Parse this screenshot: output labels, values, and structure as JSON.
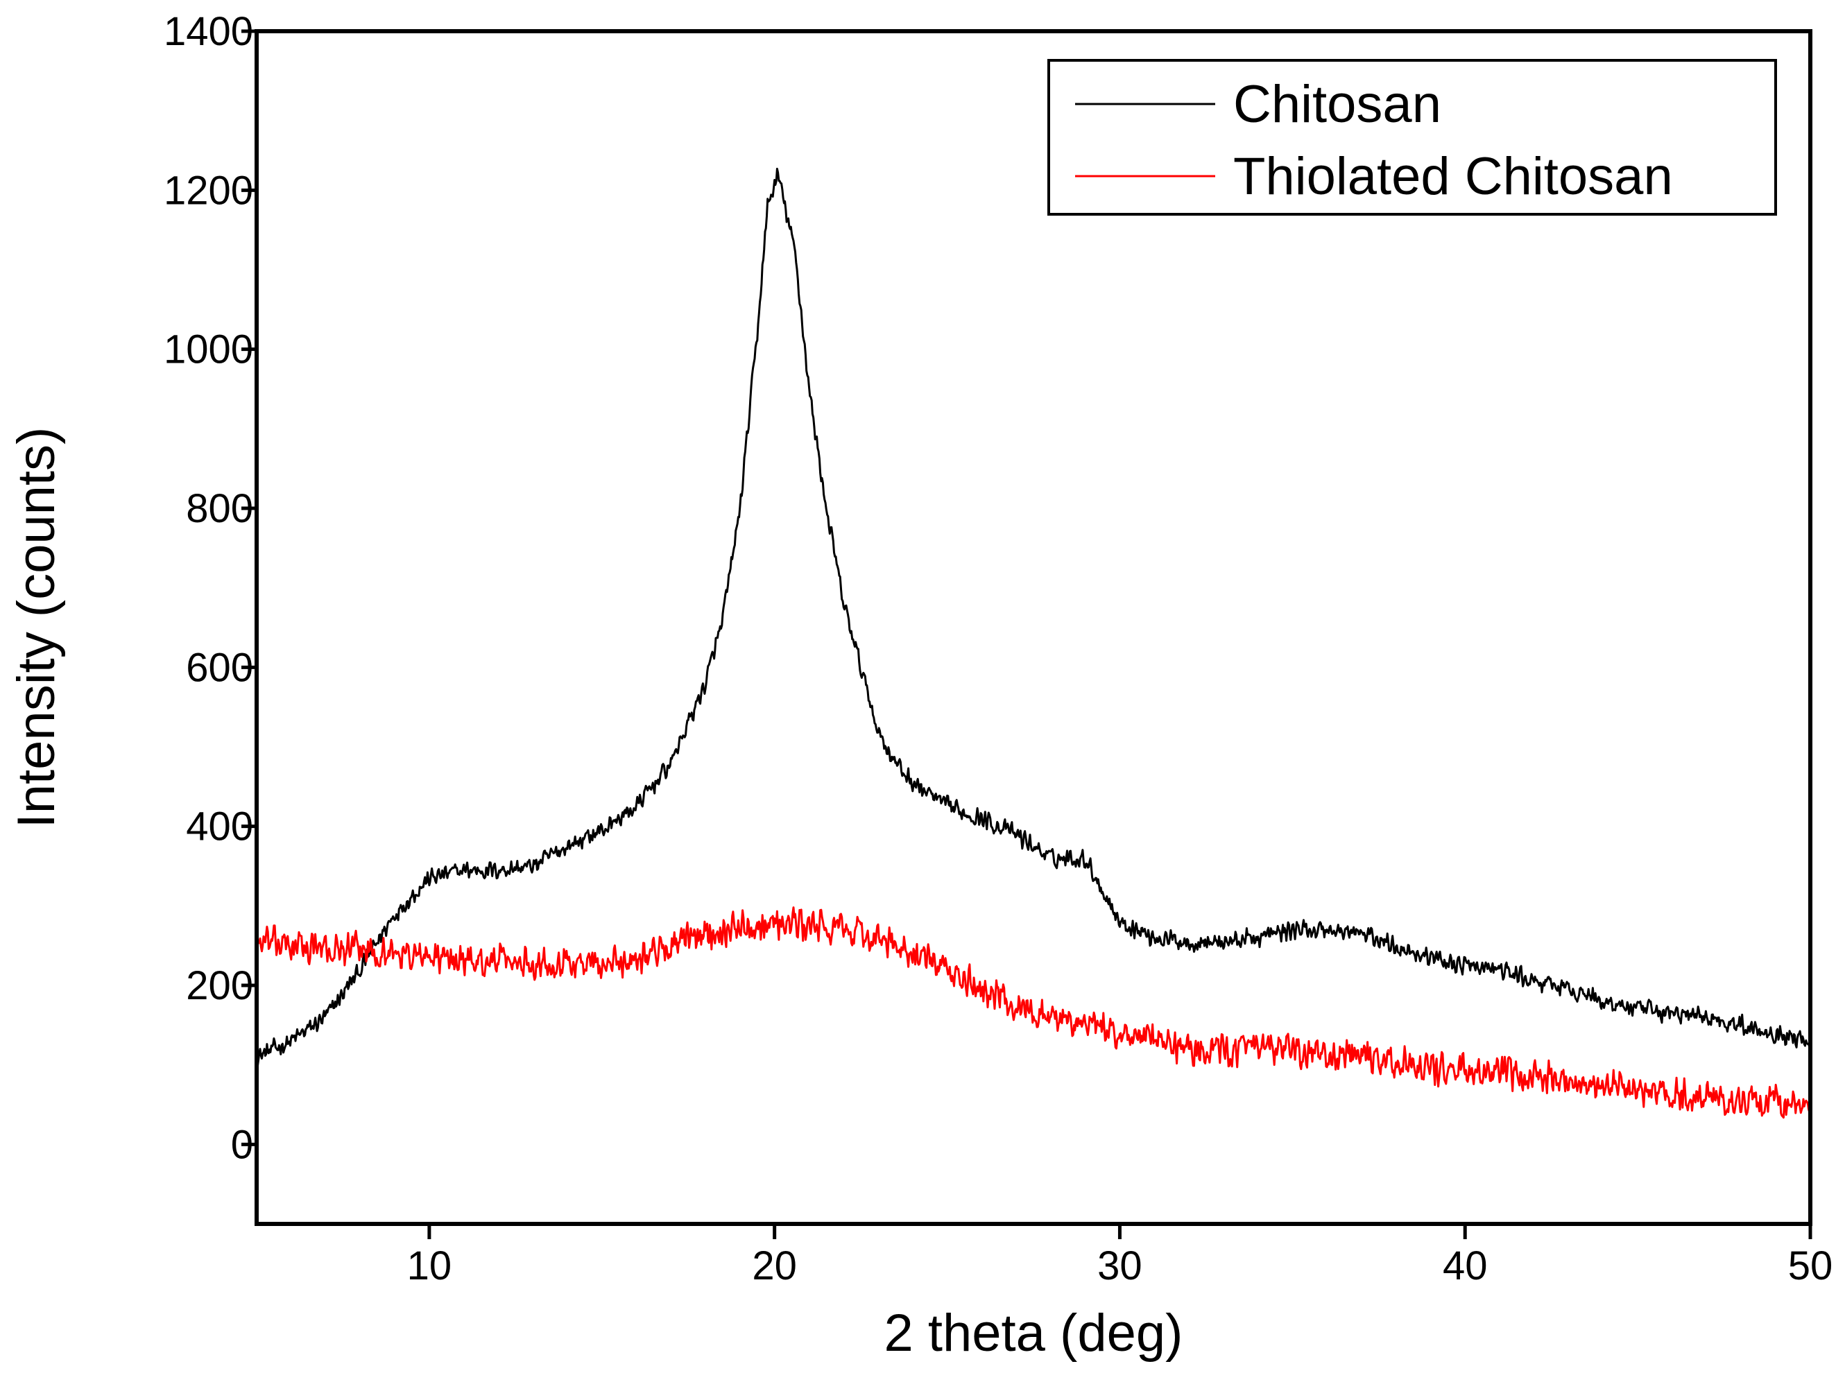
{
  "chart_data": {
    "type": "line",
    "title": "",
    "xlabel": "2 theta (deg)",
    "ylabel": "Intensity (counts)",
    "xlim": [
      5,
      50
    ],
    "ylim": [
      -100,
      1400
    ],
    "xticks": [
      10,
      20,
      30,
      40,
      50
    ],
    "yticks": [
      0,
      200,
      400,
      600,
      800,
      1000,
      1200,
      1400
    ],
    "grid": false,
    "legend_position": "top-right",
    "series": [
      {
        "name": "Chitosan",
        "color": "#000000",
        "noise": 14,
        "points": [
          [
            5,
            110
          ],
          [
            6,
            130
          ],
          [
            7,
            160
          ],
          [
            8,
            220
          ],
          [
            9,
            290
          ],
          [
            10,
            335
          ],
          [
            11,
            345
          ],
          [
            12,
            345
          ],
          [
            13,
            350
          ],
          [
            14,
            375
          ],
          [
            15,
            395
          ],
          [
            16,
            425
          ],
          [
            17,
            480
          ],
          [
            18,
            580
          ],
          [
            18.5,
            660
          ],
          [
            19,
            800
          ],
          [
            19.5,
            1020
          ],
          [
            19.8,
            1180
          ],
          [
            20.1,
            1220
          ],
          [
            20.6,
            1120
          ],
          [
            21,
            950
          ],
          [
            21.5,
            800
          ],
          [
            22,
            680
          ],
          [
            22.5,
            600
          ],
          [
            23,
            520
          ],
          [
            23.5,
            480
          ],
          [
            24,
            455
          ],
          [
            25,
            425
          ],
          [
            26,
            410
          ],
          [
            27,
            390
          ],
          [
            28,
            360
          ],
          [
            29,
            360
          ],
          [
            29.5,
            320
          ],
          [
            30,
            280
          ],
          [
            31,
            260
          ],
          [
            32,
            255
          ],
          [
            33,
            255
          ],
          [
            34,
            260
          ],
          [
            35,
            270
          ],
          [
            36,
            270
          ],
          [
            37,
            265
          ],
          [
            38,
            250
          ],
          [
            39,
            235
          ],
          [
            40,
            225
          ],
          [
            41,
            220
          ],
          [
            42,
            205
          ],
          [
            43,
            195
          ],
          [
            44,
            180
          ],
          [
            45,
            170
          ],
          [
            46,
            165
          ],
          [
            47,
            160
          ],
          [
            48,
            150
          ],
          [
            49,
            140
          ],
          [
            50,
            130
          ]
        ]
      },
      {
        "name": "Thiolated Chitosan",
        "color": "#ff0000",
        "noise": 24,
        "points": [
          [
            5,
            255
          ],
          [
            6,
            250
          ],
          [
            7,
            245
          ],
          [
            8,
            245
          ],
          [
            9,
            240
          ],
          [
            10,
            235
          ],
          [
            11,
            232
          ],
          [
            12,
            230
          ],
          [
            13,
            230
          ],
          [
            14,
            230
          ],
          [
            15,
            225
          ],
          [
            16,
            235
          ],
          [
            17,
            250
          ],
          [
            18,
            265
          ],
          [
            19,
            275
          ],
          [
            20,
            280
          ],
          [
            21,
            275
          ],
          [
            22,
            270
          ],
          [
            23,
            258
          ],
          [
            24,
            240
          ],
          [
            25,
            218
          ],
          [
            26,
            195
          ],
          [
            27,
            175
          ],
          [
            28,
            160
          ],
          [
            29,
            150
          ],
          [
            30,
            140
          ],
          [
            31,
            130
          ],
          [
            32,
            120
          ],
          [
            33,
            118
          ],
          [
            34,
            120
          ],
          [
            35,
            118
          ],
          [
            36,
            112
          ],
          [
            37,
            108
          ],
          [
            38,
            102
          ],
          [
            39,
            97
          ],
          [
            40,
            92
          ],
          [
            41,
            88
          ],
          [
            42,
            85
          ],
          [
            43,
            82
          ],
          [
            44,
            75
          ],
          [
            45,
            68
          ],
          [
            46,
            62
          ],
          [
            47,
            58
          ],
          [
            48,
            55
          ],
          [
            49,
            52
          ],
          [
            50,
            50
          ]
        ]
      }
    ]
  }
}
